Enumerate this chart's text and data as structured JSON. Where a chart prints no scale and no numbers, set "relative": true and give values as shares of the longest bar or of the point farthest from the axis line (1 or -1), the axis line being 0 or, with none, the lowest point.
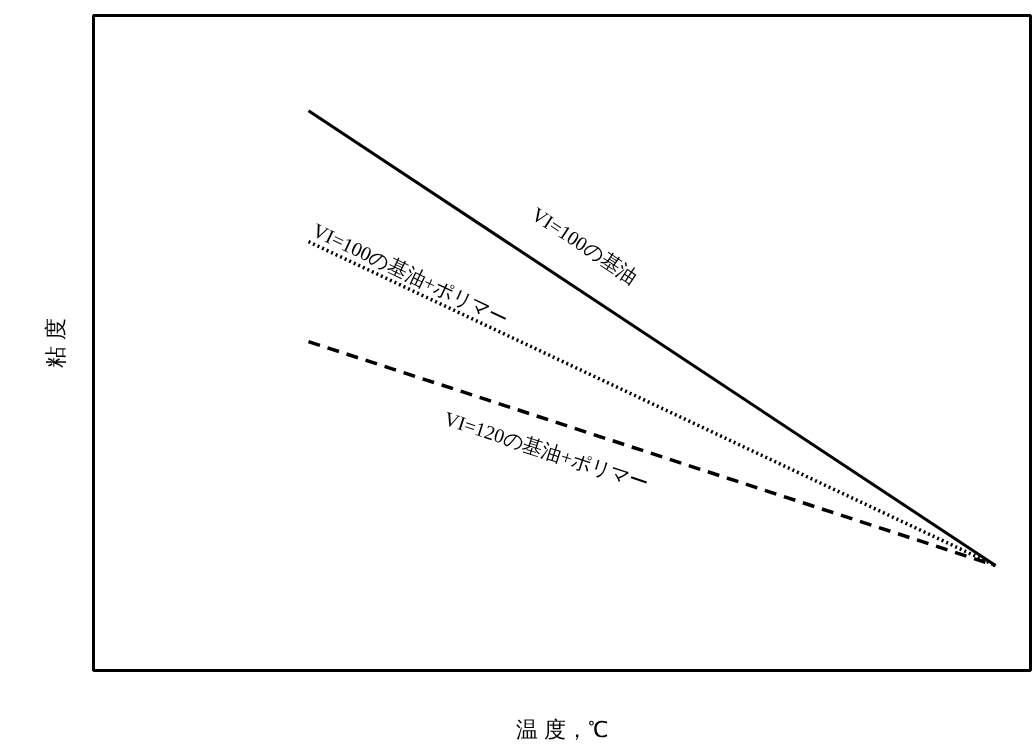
{
  "chart_data": {
    "type": "line",
    "relative": true,
    "xlabel": "温 度，℃",
    "ylabel": "粘 度",
    "categories": [
      null,
      null
    ],
    "series": [
      {
        "name": "VI=100の基油",
        "color": "#000000",
        "line_style": "solid",
        "values": [
          1,
          0.1875
        ]
      },
      {
        "name": "VI=100の基油+ポリマー",
        "color": "#000000",
        "line_style": "dotted",
        "values": [
          0.766,
          0.1875
        ]
      },
      {
        "name": "VI=120の基油+ポリマー",
        "color": "#000000",
        "line_style": "dashed",
        "values": [
          0.5875,
          0.1875
        ]
      }
    ],
    "grid": false,
    "marker": "none"
  }
}
